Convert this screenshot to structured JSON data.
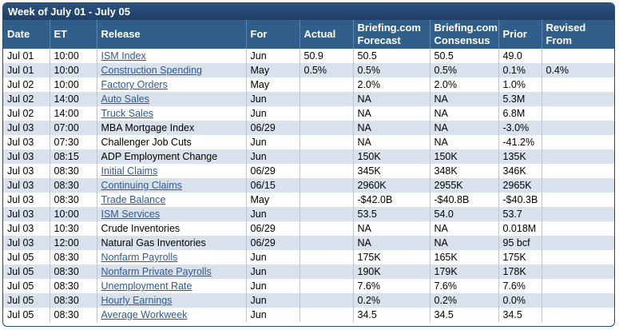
{
  "title": "Week of July 01 - July 05",
  "columns": [
    {
      "key": "date",
      "label": "Date"
    },
    {
      "key": "et",
      "label": "ET"
    },
    {
      "key": "release",
      "label": "Release"
    },
    {
      "key": "for",
      "label": "For"
    },
    {
      "key": "actual",
      "label": "Actual"
    },
    {
      "key": "forecast",
      "label": "Briefing.com Forecast"
    },
    {
      "key": "consensus",
      "label": "Briefing.com Consensus"
    },
    {
      "key": "prior",
      "label": "Prior"
    },
    {
      "key": "revised",
      "label": "Revised From"
    }
  ],
  "rows": [
    {
      "date": "Jul 01",
      "et": "10:00",
      "release": "ISM Index",
      "link": true,
      "for": "Jun",
      "actual": "50.9",
      "forecast": "50.5",
      "consensus": "50.5",
      "prior": "49.0",
      "revised": ""
    },
    {
      "date": "Jul 01",
      "et": "10:00",
      "release": "Construction Spending",
      "link": true,
      "for": "May",
      "actual": "0.5%",
      "forecast": "0.5%",
      "consensus": "0.5%",
      "prior": "0.1%",
      "revised": "0.4%"
    },
    {
      "date": "Jul 02",
      "et": "10:00",
      "release": "Factory Orders",
      "link": true,
      "for": "May",
      "actual": "",
      "forecast": "2.0%",
      "consensus": "2.0%",
      "prior": "1.0%",
      "revised": ""
    },
    {
      "date": "Jul 02",
      "et": "14:00",
      "release": "Auto Sales",
      "link": true,
      "for": "Jun",
      "actual": "",
      "forecast": "NA",
      "consensus": "NA",
      "prior": "5.3M",
      "revised": ""
    },
    {
      "date": "Jul 02",
      "et": "14:00",
      "release": "Truck Sales",
      "link": true,
      "for": "Jun",
      "actual": "",
      "forecast": "NA",
      "consensus": "NA",
      "prior": "6.8M",
      "revised": ""
    },
    {
      "date": "Jul 03",
      "et": "07:00",
      "release": "MBA Mortgage Index",
      "link": false,
      "for": "06/29",
      "actual": "",
      "forecast": "NA",
      "consensus": "NA",
      "prior": "-3.0%",
      "revised": ""
    },
    {
      "date": "Jul 03",
      "et": "07:30",
      "release": "Challenger Job Cuts",
      "link": false,
      "for": "Jun",
      "actual": "",
      "forecast": "NA",
      "consensus": "NA",
      "prior": "-41.2%",
      "revised": ""
    },
    {
      "date": "Jul 03",
      "et": "08:15",
      "release": "ADP Employment Change",
      "link": false,
      "for": "Jun",
      "actual": "",
      "forecast": "150K",
      "consensus": "150K",
      "prior": "135K",
      "revised": ""
    },
    {
      "date": "Jul 03",
      "et": "08:30",
      "release": "Initial Claims",
      "link": true,
      "for": "06/29",
      "actual": "",
      "forecast": "345K",
      "consensus": "348K",
      "prior": "346K",
      "revised": ""
    },
    {
      "date": "Jul 03",
      "et": "08:30",
      "release": "Continuing Claims",
      "link": true,
      "for": "06/15",
      "actual": "",
      "forecast": "2960K",
      "consensus": "2955K",
      "prior": "2965K",
      "revised": ""
    },
    {
      "date": "Jul 03",
      "et": "08:30",
      "release": "Trade Balance",
      "link": true,
      "for": "May",
      "actual": "",
      "forecast": "-$42.0B",
      "consensus": "-$40.8B",
      "prior": "-$40.3B",
      "revised": ""
    },
    {
      "date": "Jul 03",
      "et": "10:00",
      "release": "ISM Services",
      "link": true,
      "for": "Jun",
      "actual": "",
      "forecast": "53.5",
      "consensus": "54.0",
      "prior": "53.7",
      "revised": ""
    },
    {
      "date": "Jul 03",
      "et": "10:30",
      "release": "Crude Inventories",
      "link": false,
      "for": "06/29",
      "actual": "",
      "forecast": "NA",
      "consensus": "NA",
      "prior": "0.018M",
      "revised": ""
    },
    {
      "date": "Jul 03",
      "et": "12:00",
      "release": "Natural Gas Inventories",
      "link": false,
      "for": "06/29",
      "actual": "",
      "forecast": "NA",
      "consensus": "NA",
      "prior": "95 bcf",
      "revised": ""
    },
    {
      "date": "Jul 05",
      "et": "08:30",
      "release": "Nonfarm Payrolls",
      "link": true,
      "for": "Jun",
      "actual": "",
      "forecast": "175K",
      "consensus": "165K",
      "prior": "175K",
      "revised": ""
    },
    {
      "date": "Jul 05",
      "et": "08:30",
      "release": "Nonfarm Private Payrolls",
      "link": true,
      "for": "Jun",
      "actual": "",
      "forecast": "190K",
      "consensus": "179K",
      "prior": "178K",
      "revised": ""
    },
    {
      "date": "Jul 05",
      "et": "08:30",
      "release": "Unemployment Rate",
      "link": true,
      "for": "Jun",
      "actual": "",
      "forecast": "7.6%",
      "consensus": "7.6%",
      "prior": "7.6%",
      "revised": ""
    },
    {
      "date": "Jul 05",
      "et": "08:30",
      "release": "Hourly Earnings",
      "link": true,
      "for": "Jun",
      "actual": "",
      "forecast": "0.2%",
      "consensus": "0.2%",
      "prior": "0.0%",
      "revised": ""
    },
    {
      "date": "Jul 05",
      "et": "08:30",
      "release": "Average Workweek",
      "link": true,
      "for": "Jun",
      "actual": "",
      "forecast": "34.5",
      "consensus": "34.5",
      "prior": "34.5",
      "revised": ""
    }
  ]
}
